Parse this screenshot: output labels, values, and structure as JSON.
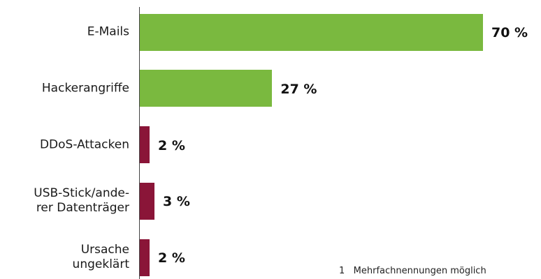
{
  "chart_data": {
    "type": "bar",
    "orientation": "horizontal",
    "categories": [
      "E-Mails",
      "Hackerangriffe",
      "DDoS-Attacken",
      "USB-Stick/ande-\nrer Datenträger",
      "Ursache\nungeklärt"
    ],
    "values": [
      70,
      27,
      2,
      3,
      2
    ],
    "value_labels": [
      "70 %",
      "27 %",
      "2 %",
      "3 %",
      "2 %"
    ],
    "colors": [
      "#7ab93f",
      "#7ab93f",
      "#8a1538",
      "#8a1538",
      "#8a1538"
    ],
    "annotation": "1   Mehrfachnennungen möglich"
  }
}
